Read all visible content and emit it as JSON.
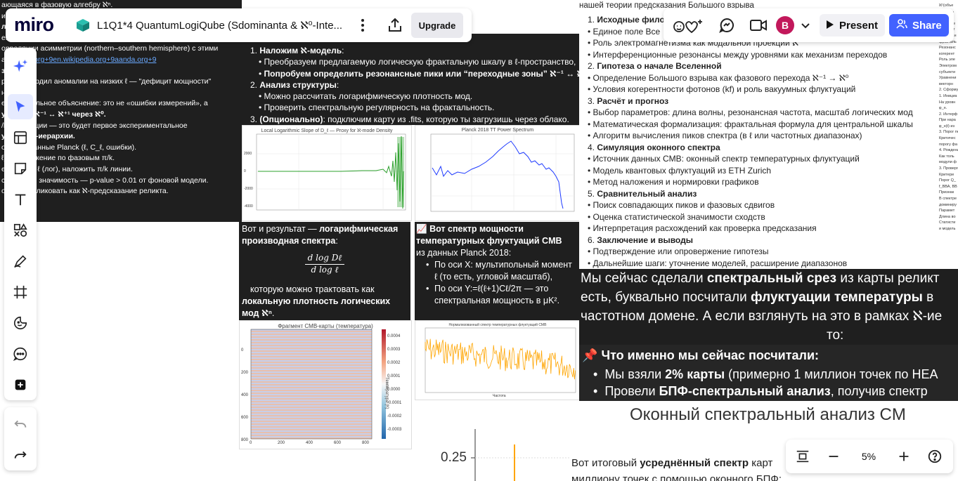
{
  "app": {
    "logo": "miro",
    "board_title": "L1Q1*4 QuantumLogiQube (Sdominanta & ℵ⁰-Inte...",
    "upgrade_label": "Upgrade",
    "present_label": "Present",
    "share_label": "Share",
    "avatar_letter": "B",
    "zoom_label": "5%",
    "accent": "#4262ff"
  },
  "left_card": {
    "lines": [
      "ающаяся в фазовую алгебру ℵⁿ.",
      "им волну δ(ℓ) = наблюдаемая C_ℓ – ΛCDM_ℓ;",
      "логарифмическую шкалу: log₂(ℓ/ℓ₀), где ℓ₀ — средняя",
      "ение δ от π/k — выявим пики близко к π/5, π/7, π/11;",
      "орреляции асимметрии (northern–southern hemisphere) с этими",
      "ами",
      "значимо",
      "ро подтвердил аномалии на низких ℓ — \"дефицит мощности\"",
      "не\" сбои ;",
      "ет фрактальное объяснение: это не «ошибки измерений», а",
      "уровней ℵ⁻¹ ↔ ℵ⁺¹ через ℵ⁰.",
      "/k-модуляции — это будет первое экспериментальное",
      "уктуры ℵ-иерархии.",
      "",
      "ольные данные Planck (ℓ, C_ℓ, ошибки).",
      "ℓ) и разложение по фазовым π/k.",
      "еция: δ vs ℓ (лог), наложить π/k линии.",
      "стическую значимость — p-value > 0.01 от фоновой модели.",
      "ожно опубликовать как ℵ-предсказание реликта."
    ],
    "links": "arxiv.org+9en.wikipedia.org+9aanda.org+9"
  },
  "mid_card": {
    "items": [
      {
        "num": "1.",
        "bold": "Наложим ℵ-модель",
        "rest": ":"
      },
      {
        "bullet": "Преобразуем предлагаемую логическую фрактальную шкалу в ℓ-пространство,"
      },
      {
        "bullet": "Попробуем определить резонансные пики или “переходные зоны” ℵ⁻¹ ↔ ℵ⁰ ↔ ℵ⁺¹.",
        "bold_bullet": true
      },
      {
        "num": "2.",
        "bold": "Анализ структуры",
        "rest": ":"
      },
      {
        "bullet": "Можно рассчитать логарифмическую плотность мод."
      },
      {
        "bullet": "Проверить спектральную регулярность на фрактальность."
      },
      {
        "num": "3.",
        "bold": "(Опционально)",
        "rest": ": подключим карту из .fits, которую ты загрузишь через облако."
      }
    ]
  },
  "plot1": {
    "title": "Local Logarithmic Slope of D_ℓ — Proxy for ℵ-mode Density",
    "yticks": [
      "2000",
      "0",
      "-2000",
      "-4000"
    ]
  },
  "plot2": {
    "title": "Planck 2018 TT Power Spectrum"
  },
  "deriv_card": {
    "intro": "Вот и результат — ",
    "bold": "логарифмическая производная спектра",
    "colon": ":",
    "formula_num": "d log Dℓ",
    "formula_den": "d log ℓ",
    "after": "которую можно трактовать как",
    "after_bold1": "локальную плотность логических",
    "after_bold2": "мод ℵⁿ",
    "after_end": "."
  },
  "cmb_card": {
    "bold1": "Вот спектр мощности",
    "bold2": "температурных флуктуаций CMB",
    "source": "из данных Planck 2018:",
    "bullets": [
      "По оси X: мультипольный момент",
      "ℓ (то есть, угловой масштаб),",
      "По оси Y:=ℓ(ℓ+1)Cℓ/2π — это",
      "спектральная мощность в μK²."
    ]
  },
  "heatmap": {
    "title": "Фрагмент CMB-карты (температура)",
    "xticks": [
      "0",
      "200",
      "400",
      "600",
      "800"
    ],
    "yticks": [
      "0",
      "200",
      "400",
      "600",
      "800"
    ],
    "cbar": [
      "0.0004",
      "0.0003",
      "0.0002",
      "0.0001",
      "0.0000",
      "-0.0001",
      "-0.0002",
      "-0.0003"
    ],
    "cbar_label": "Температура (К)"
  },
  "noise_plot": {
    "title": "Нормализованный спектр температурных флуктуаций CMB",
    "xlabel": "Частота",
    "color": "#ffa500"
  },
  "plan_card": {
    "header": "нашей теории предсказания Большого взрыва",
    "items": [
      {
        "num": "1.",
        "bold": "Исходные фило"
      },
      {
        "bullet": "Единое поле Все"
      },
      {
        "bullet": "Роль электромагнетизма как модальной проекции ℵ"
      },
      {
        "bullet": "Интерференционные резонансы между уровнями как механизм переходов"
      },
      {
        "num": "2.",
        "bold": "Гипотеза о начале Вселенной"
      },
      {
        "bullet": "Определение Большого взрыва как фазового перехода ℵ⁻¹ → ℵ⁰"
      },
      {
        "bullet": "Условия когерентности фотонов (kf) и роль вакуумных флуктуаций"
      },
      {
        "num": "3.",
        "bold": "Расчёт и прогноз"
      },
      {
        "bullet": "Выбор параметров: длина волны, резонансная частота, масштаб логических мод"
      },
      {
        "bullet": "Математическая формализация: фрактальная формула для центральной шкалы"
      },
      {
        "bullet": "Алгоритм вычисления пиков спектра (в ℓ или частотных диапазонах)"
      },
      {
        "num": "4.",
        "bold": "Симуляция оконного спектра"
      },
      {
        "bullet": "Источник данных CMB: оконный спектр температурных флуктуаций"
      },
      {
        "bullet": "Модель квантовых флуктуаций из ETH Zurich"
      },
      {
        "bullet": "Метод наложения и нормировки графиков"
      },
      {
        "num": "5.",
        "bold": "Сравнительный анализ"
      },
      {
        "bullet": "Поиск совпадающих пиков и фазовых сдвигов"
      },
      {
        "bullet": "Оценка статистической значимости сходств"
      },
      {
        "bullet": "Интерпретация расхождений как проверка предсказания"
      },
      {
        "num": "6.",
        "bold": "Заключение и выводы"
      },
      {
        "bullet": "Подтверждение или опровержение гипотезы"
      },
      {
        "bullet": "Дальнейшие шаги: уточнение моделей, расширение диапазонов"
      }
    ]
  },
  "slice_card": {
    "l1a": "Мы сейчас сделали ",
    "l1b": "спектральный срез",
    "l1c": " из карты реликт",
    "l2a": "есть, буквально посчитали ",
    "l2b": "флуктуации температуры",
    "l2c": " в",
    "l3": "частотном домене. А если взглянуть на это в рамках ℵ-ие",
    "l4": "то:",
    "q": "Что именно мы сейчас посчитали:",
    "b1a": "Мы взяли ",
    "b1b": "2% карты",
    "b1c": " (примерно 1 миллион точек по HEA",
    "b2a": "Провели ",
    "b2b": "БПФ-спектральный анализ",
    "b2c": ", получив спектр"
  },
  "window_card": {
    "title": "Оконный спектральный анализ CM",
    "ytick": "0.25"
  },
  "avg_card": {
    "a": "Вот итоговый ",
    "b": "усреднённый спектр",
    "c": " карт",
    "d": "миллиону точек с помощью оконного БПФ:"
  },
  "right_edge": [
    "ℵ¹(объе",
    "Уровень",
    "ℵ⁺¹ (вы",
    "Интерфе",
    "",
    "Математ",
    "Простран",
    "фракталь",
    "Резонанс",
    "когерент",
    "Роль эле",
    "Электром",
    "субъекти",
    "Уравнени",
    "векторн",
    "2. Сформулир",
    "1. Инициа",
    "На уровн",
    "φ_н.",
    "2. Интерф",
    "При нара",
    "φ_н(t) из",
    "3. Порог пе",
    "Критичес",
    "порогу фа",
    "4. Рождени",
    "Как толь",
    "модули ф",
    "3. Проверяем п",
    "Критери",
    "Порог Q_",
    "f_ВВА, ВВ",
    "Признак",
    "В спектре",
    "доминиру",
    "Парамет",
    "Длина во",
    "Статисти",
    "и модель"
  ]
}
